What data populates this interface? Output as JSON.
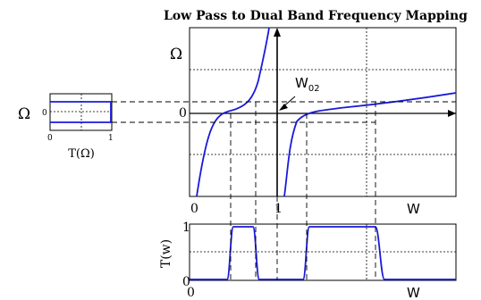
{
  "title": "Low Pass to Dual Band Frequency Mapping",
  "main_plot": {
    "y_axis_symbol": "Ω",
    "origin_label": "0",
    "annotation": "W",
    "annotation_sub": "02",
    "x_ticks": [
      "0",
      "1"
    ],
    "x_axis_label": "W"
  },
  "left_plot": {
    "y_axis_symbol": "Ω",
    "y_tick": "0",
    "x_ticks": [
      "0",
      "1"
    ],
    "x_label": "T(Ω)"
  },
  "bottom_plot": {
    "y_label": "T(w)",
    "y_ticks": [
      "1",
      "0"
    ],
    "x_tick": "0",
    "x_label": "W"
  },
  "colors": {
    "curve": "#1a1adb",
    "axes": "#000000",
    "background": "#ffffff"
  }
}
